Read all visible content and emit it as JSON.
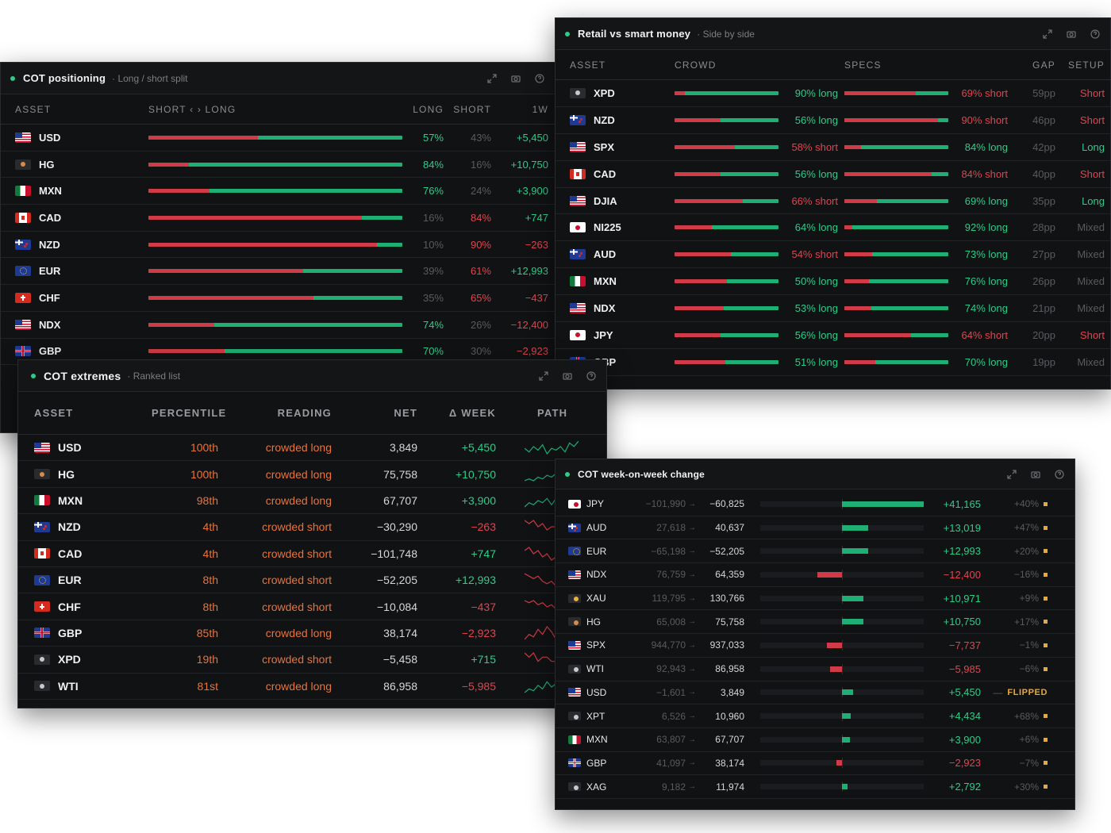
{
  "colors": {
    "green": "#1fae74",
    "red": "#cf3b46",
    "orange": "#e8743c",
    "yellow": "#e8a83c",
    "bg": "#111214"
  },
  "icons": [
    "expand-icon",
    "camera-icon",
    "help-icon"
  ],
  "cot": {
    "title": "COT positioning",
    "subtitle": "Long / short split",
    "headers": {
      "asset": "ASSET",
      "split": "SHORT ‹ › LONG",
      "long": "LONG",
      "short": "SHORT",
      "week": "1W"
    },
    "rows": [
      {
        "flag": "us",
        "sym": "USD",
        "long": 57,
        "long_t": "57%",
        "short_t": "43%",
        "wk": "+5,450",
        "dir": "long"
      },
      {
        "flag": "cu",
        "sym": "HG",
        "long": 84,
        "long_t": "84%",
        "short_t": "16%",
        "wk": "+10,750",
        "dir": "long"
      },
      {
        "flag": "mx",
        "sym": "MXN",
        "long": 76,
        "long_t": "76%",
        "short_t": "24%",
        "wk": "+3,900",
        "dir": "long"
      },
      {
        "flag": "ca",
        "sym": "CAD",
        "long": 16,
        "long_t": "16%",
        "short_t": "84%",
        "wk": "+747",
        "dir": "short"
      },
      {
        "flag": "nz",
        "sym": "NZD",
        "long": 10,
        "long_t": "10%",
        "short_t": "90%",
        "wk": "−263",
        "dir": "short"
      },
      {
        "flag": "eu",
        "sym": "EUR",
        "long": 39,
        "long_t": "39%",
        "short_t": "61%",
        "wk": "+12,993",
        "dir": "short"
      },
      {
        "flag": "ch",
        "sym": "CHF",
        "long": 35,
        "long_t": "35%",
        "short_t": "65%",
        "wk": "−437",
        "dir": "short"
      },
      {
        "flag": "us",
        "sym": "NDX",
        "long": 74,
        "long_t": "74%",
        "short_t": "26%",
        "wk": "−12,400",
        "dir": "long"
      },
      {
        "flag": "gb",
        "sym": "GBP",
        "long": 70,
        "long_t": "70%",
        "short_t": "30%",
        "wk": "−2,923",
        "dir": "long"
      }
    ]
  },
  "rvs": {
    "title": "Retail vs smart money",
    "subtitle": "Side by side",
    "headers": {
      "asset": "ASSET",
      "crowd": "CROWD",
      "specs": "SPECS",
      "gap": "GAP",
      "setup": "SETUP"
    },
    "rows": [
      {
        "flag": "dot",
        "sym": "XPD",
        "c_short": 10,
        "c_t": "90% long",
        "c_dir": "long",
        "s_short": 69,
        "s_t": "69% short",
        "s_dir": "short",
        "gap": "59pp",
        "setup": "Short"
      },
      {
        "flag": "nz",
        "sym": "NZD",
        "c_short": 44,
        "c_t": "56% long",
        "c_dir": "long",
        "s_short": 90,
        "s_t": "90% short",
        "s_dir": "short",
        "gap": "46pp",
        "setup": "Short"
      },
      {
        "flag": "us",
        "sym": "SPX",
        "c_short": 58,
        "c_t": "58% short",
        "c_dir": "short",
        "s_short": 16,
        "s_t": "84% long",
        "s_dir": "long",
        "gap": "42pp",
        "setup": "Long"
      },
      {
        "flag": "ca",
        "sym": "CAD",
        "c_short": 44,
        "c_t": "56% long",
        "c_dir": "long",
        "s_short": 84,
        "s_t": "84% short",
        "s_dir": "short",
        "gap": "40pp",
        "setup": "Short"
      },
      {
        "flag": "us",
        "sym": "DJIA",
        "c_short": 66,
        "c_t": "66% short",
        "c_dir": "short",
        "s_short": 31,
        "s_t": "69% long",
        "s_dir": "long",
        "gap": "35pp",
        "setup": "Long"
      },
      {
        "flag": "jp",
        "sym": "NI225",
        "c_short": 36,
        "c_t": "64% long",
        "c_dir": "long",
        "s_short": 8,
        "s_t": "92% long",
        "s_dir": "long",
        "gap": "28pp",
        "setup": "Mixed"
      },
      {
        "flag": "nz",
        "sym": "AUD",
        "c_short": 54,
        "c_t": "54% short",
        "c_dir": "short",
        "s_short": 27,
        "s_t": "73% long",
        "s_dir": "long",
        "gap": "27pp",
        "setup": "Mixed"
      },
      {
        "flag": "mx",
        "sym": "MXN",
        "c_short": 50,
        "c_t": "50% long",
        "c_dir": "long",
        "s_short": 24,
        "s_t": "76% long",
        "s_dir": "long",
        "gap": "26pp",
        "setup": "Mixed"
      },
      {
        "flag": "us",
        "sym": "NDX",
        "c_short": 47,
        "c_t": "53% long",
        "c_dir": "long",
        "s_short": 26,
        "s_t": "74% long",
        "s_dir": "long",
        "gap": "21pp",
        "setup": "Mixed"
      },
      {
        "flag": "jp",
        "sym": "JPY",
        "c_short": 44,
        "c_t": "56% long",
        "c_dir": "long",
        "s_short": 64,
        "s_t": "64% short",
        "s_dir": "short",
        "gap": "20pp",
        "setup": "Short"
      },
      {
        "flag": "gb",
        "sym": "GBP",
        "c_short": 49,
        "c_t": "51% long",
        "c_dir": "long",
        "s_short": 30,
        "s_t": "70% long",
        "s_dir": "long",
        "gap": "19pp",
        "setup": "Mixed"
      }
    ]
  },
  "ext": {
    "title": "COT extremes",
    "subtitle": "Ranked list",
    "headers": {
      "asset": "ASSET",
      "pct": "PERCENTILE",
      "reading": "READING",
      "net": "NET",
      "week": "Δ WEEK",
      "path": "PATH"
    },
    "rows": [
      {
        "flag": "us",
        "sym": "USD",
        "pct": "100th",
        "reading": "crowded long",
        "net": "3,849",
        "wk": "+5,450",
        "wk_dir": "up",
        "path": [
          5,
          3,
          6,
          4,
          7,
          2,
          5,
          4,
          6,
          3,
          8,
          6,
          9
        ],
        "trend": "up"
      },
      {
        "flag": "cu",
        "sym": "HG",
        "pct": "100th",
        "reading": "crowded long",
        "net": "75,758",
        "wk": "+10,750",
        "wk_dir": "up",
        "path": [
          2,
          3,
          2,
          4,
          3,
          5,
          4,
          6,
          5,
          7,
          6,
          8,
          9
        ],
        "trend": "up"
      },
      {
        "flag": "mx",
        "sym": "MXN",
        "pct": "98th",
        "reading": "crowded long",
        "net": "67,707",
        "wk": "+3,900",
        "wk_dir": "up",
        "path": [
          2,
          4,
          3,
          5,
          4,
          6,
          3,
          6,
          5,
          7,
          5,
          8,
          7
        ],
        "trend": "up"
      },
      {
        "flag": "nz",
        "sym": "NZD",
        "pct": "4th",
        "reading": "crowded short",
        "net": "−30,290",
        "wk": "−263",
        "wk_dir": "down",
        "path": [
          8,
          7,
          8,
          6,
          7,
          5,
          6,
          6,
          5,
          6,
          5,
          5,
          4
        ],
        "trend": "down"
      },
      {
        "flag": "ca",
        "sym": "CAD",
        "pct": "4th",
        "reading": "crowded short",
        "net": "−101,748",
        "wk": "+747",
        "wk_dir": "up",
        "path": [
          6,
          7,
          5,
          6,
          4,
          5,
          3,
          4,
          5,
          3,
          4,
          3,
          3
        ],
        "trend": "down"
      },
      {
        "flag": "eu",
        "sym": "EUR",
        "pct": "8th",
        "reading": "crowded short",
        "net": "−52,205",
        "wk": "+12,993",
        "wk_dir": "up",
        "path": [
          8,
          7,
          6,
          7,
          5,
          4,
          5,
          3,
          4,
          3,
          4,
          4,
          5
        ],
        "trend": "down"
      },
      {
        "flag": "ch",
        "sym": "CHF",
        "pct": "8th",
        "reading": "crowded short",
        "net": "−10,084",
        "wk": "−437",
        "wk_dir": "down",
        "path": [
          8,
          7,
          8,
          6,
          7,
          5,
          6,
          4,
          5,
          3,
          4,
          3,
          2
        ],
        "trend": "down"
      },
      {
        "flag": "gb",
        "sym": "GBP",
        "pct": "85th",
        "reading": "crowded long",
        "net": "38,174",
        "wk": "−2,923",
        "wk_dir": "down",
        "path": [
          3,
          5,
          4,
          7,
          5,
          8,
          6,
          3,
          5,
          4,
          6,
          5,
          7
        ],
        "trend": "down"
      },
      {
        "flag": "dot",
        "sym": "XPD",
        "pct": "19th",
        "reading": "crowded short",
        "net": "−5,458",
        "wk": "+715",
        "wk_dir": "up",
        "path": [
          7,
          6,
          7,
          5,
          6,
          6,
          5,
          5,
          6,
          5,
          5,
          4,
          5
        ],
        "trend": "down"
      },
      {
        "flag": "dot",
        "sym": "WTI",
        "pct": "81st",
        "reading": "crowded long",
        "net": "86,958",
        "wk": "−5,985",
        "wk_dir": "down",
        "path": [
          2,
          4,
          3,
          6,
          4,
          8,
          5,
          7,
          4,
          8,
          6,
          9,
          7
        ],
        "trend": "up"
      }
    ]
  },
  "wow": {
    "title": "COT week-on-week change",
    "max": 41165,
    "rows": [
      {
        "flag": "jp",
        "sym": "JPY",
        "from": "−101,990",
        "to": "−60,825",
        "chg": 41165,
        "chg_t": "+41,165",
        "pct": "+40%",
        "flag_t": ""
      },
      {
        "flag": "nz",
        "sym": "AUD",
        "from": "27,618",
        "to": "40,637",
        "chg": 13019,
        "chg_t": "+13,019",
        "pct": "+47%",
        "flag_t": ""
      },
      {
        "flag": "eu",
        "sym": "EUR",
        "from": "−65,198",
        "to": "−52,205",
        "chg": 12993,
        "chg_t": "+12,993",
        "pct": "+20%",
        "flag_t": ""
      },
      {
        "flag": "us",
        "sym": "NDX",
        "from": "76,759",
        "to": "64,359",
        "chg": -12400,
        "chg_t": "−12,400",
        "pct": "−16%",
        "flag_t": ""
      },
      {
        "flag": "au-c",
        "sym": "XAU",
        "from": "119,795",
        "to": "130,766",
        "chg": 10971,
        "chg_t": "+10,971",
        "pct": "+9%",
        "flag_t": ""
      },
      {
        "flag": "cu",
        "sym": "HG",
        "from": "65,008",
        "to": "75,758",
        "chg": 10750,
        "chg_t": "+10,750",
        "pct": "+17%",
        "flag_t": ""
      },
      {
        "flag": "us",
        "sym": "SPX",
        "from": "944,770",
        "to": "937,033",
        "chg": -7737,
        "chg_t": "−7,737",
        "pct": "−1%",
        "flag_t": ""
      },
      {
        "flag": "dot",
        "sym": "WTI",
        "from": "92,943",
        "to": "86,958",
        "chg": -5985,
        "chg_t": "−5,985",
        "pct": "−6%",
        "flag_t": ""
      },
      {
        "flag": "us",
        "sym": "USD",
        "from": "−1,601",
        "to": "3,849",
        "chg": 5450,
        "chg_t": "+5,450",
        "pct": "—",
        "flag_t": "FLIPPED"
      },
      {
        "flag": "dot",
        "sym": "XPT",
        "from": "6,526",
        "to": "10,960",
        "chg": 4434,
        "chg_t": "+4,434",
        "pct": "+68%",
        "flag_t": ""
      },
      {
        "flag": "mx",
        "sym": "MXN",
        "from": "63,807",
        "to": "67,707",
        "chg": 3900,
        "chg_t": "+3,900",
        "pct": "+6%",
        "flag_t": ""
      },
      {
        "flag": "gb",
        "sym": "GBP",
        "from": "41,097",
        "to": "38,174",
        "chg": -2923,
        "chg_t": "−2,923",
        "pct": "−7%",
        "flag_t": ""
      },
      {
        "flag": "dot",
        "sym": "XAG",
        "from": "9,182",
        "to": "11,974",
        "chg": 2792,
        "chg_t": "+2,792",
        "pct": "+30%",
        "flag_t": ""
      }
    ]
  }
}
